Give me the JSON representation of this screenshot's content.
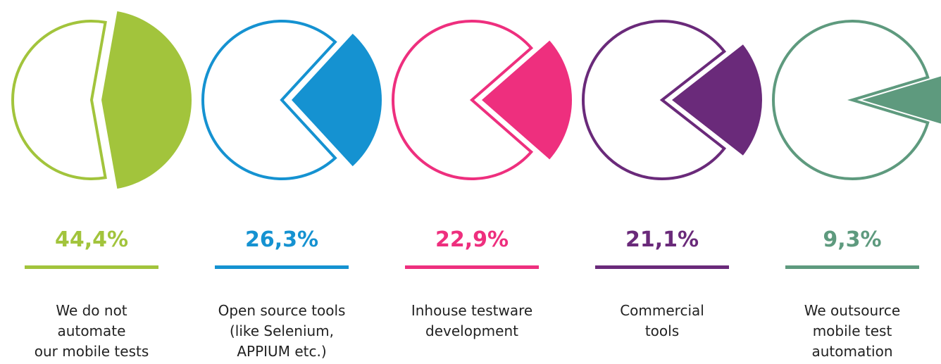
{
  "chart_data": {
    "type": "pie",
    "categories": [
      "We do not\nautomate\nour mobile tests",
      "Open source tools\n(like Selenium,\nAPPIUM etc.)",
      "Inhouse testware\ndevelopment",
      "Commercial\ntools",
      "We outsource\nmobile test\nautomation"
    ],
    "values": [
      44.4,
      26.3,
      22.9,
      21.1,
      9.3
    ],
    "value_labels": [
      "44,4%",
      "26,3%",
      "22,9%",
      "21,1%",
      "9,3%"
    ],
    "colors": [
      "#a2c43c",
      "#1592d1",
      "#ee2f7e",
      "#6a2a7a",
      "#5e9a7e"
    ]
  }
}
